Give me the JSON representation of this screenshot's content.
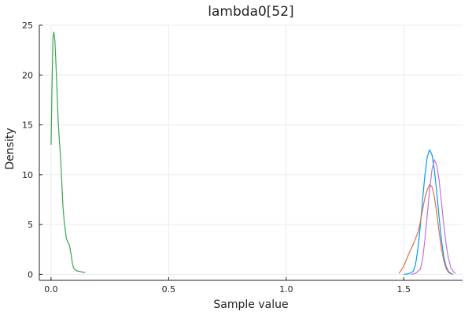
{
  "chart_data": {
    "type": "line",
    "title": "lambda0[52]",
    "xlabel": "Sample value",
    "ylabel": "Density",
    "xlim": [
      -0.05,
      1.75
    ],
    "ylim": [
      -0.6,
      25
    ],
    "x_ticks": [
      {
        "value": 0.0,
        "label": "0.0"
      },
      {
        "value": 0.5,
        "label": "0.5"
      },
      {
        "value": 1.0,
        "label": "1.0"
      },
      {
        "value": 1.5,
        "label": "1.5"
      }
    ],
    "y_ticks": [
      {
        "value": 0,
        "label": "0"
      },
      {
        "value": 5,
        "label": "5"
      },
      {
        "value": 10,
        "label": "10"
      },
      {
        "value": 15,
        "label": "15"
      },
      {
        "value": 20,
        "label": "20"
      },
      {
        "value": 25,
        "label": "25"
      }
    ],
    "grid": true,
    "legend": "none",
    "series": [
      {
        "color": "#009af9",
        "points": [
          [
            1.5,
            0.0
          ],
          [
            1.52,
            0.05
          ],
          [
            1.54,
            0.3
          ],
          [
            1.55,
            1.0
          ],
          [
            1.56,
            2.5
          ],
          [
            1.57,
            4.8
          ],
          [
            1.58,
            7.5
          ],
          [
            1.59,
            10.0
          ],
          [
            1.6,
            11.8
          ],
          [
            1.61,
            12.5
          ],
          [
            1.62,
            12.0
          ],
          [
            1.63,
            10.5
          ],
          [
            1.64,
            8.3
          ],
          [
            1.65,
            5.8
          ],
          [
            1.66,
            3.5
          ],
          [
            1.67,
            1.8
          ],
          [
            1.68,
            0.8
          ],
          [
            1.69,
            0.3
          ],
          [
            1.7,
            0.1
          ],
          [
            1.71,
            0.0
          ]
        ]
      },
      {
        "color": "#e26f46",
        "points": [
          [
            1.48,
            0.1
          ],
          [
            1.5,
            0.8
          ],
          [
            1.52,
            2.0
          ],
          [
            1.54,
            3.0
          ],
          [
            1.55,
            3.6
          ],
          [
            1.56,
            4.2
          ],
          [
            1.57,
            5.2
          ],
          [
            1.58,
            6.5
          ],
          [
            1.59,
            7.7
          ],
          [
            1.6,
            8.5
          ],
          [
            1.61,
            9.0
          ],
          [
            1.62,
            8.8
          ],
          [
            1.63,
            7.8
          ],
          [
            1.64,
            6.2
          ],
          [
            1.65,
            4.3
          ],
          [
            1.66,
            2.6
          ],
          [
            1.67,
            1.4
          ],
          [
            1.68,
            0.6
          ],
          [
            1.69,
            0.2
          ],
          [
            1.7,
            0.05
          ]
        ]
      },
      {
        "color": "#3da44d",
        "points": [
          [
            0.0,
            13.0
          ],
          [
            0.004,
            19.0
          ],
          [
            0.008,
            23.8
          ],
          [
            0.012,
            24.3
          ],
          [
            0.016,
            23.5
          ],
          [
            0.02,
            21.5
          ],
          [
            0.025,
            18.5
          ],
          [
            0.03,
            15.5
          ],
          [
            0.035,
            13.5
          ],
          [
            0.04,
            11.8
          ],
          [
            0.045,
            9.5
          ],
          [
            0.05,
            7.0
          ],
          [
            0.055,
            5.5
          ],
          [
            0.06,
            4.5
          ],
          [
            0.065,
            3.6
          ],
          [
            0.07,
            3.3
          ],
          [
            0.075,
            3.1
          ],
          [
            0.08,
            2.7
          ],
          [
            0.085,
            2.0
          ],
          [
            0.09,
            1.2
          ],
          [
            0.095,
            0.7
          ],
          [
            0.1,
            0.5
          ],
          [
            0.11,
            0.35
          ],
          [
            0.12,
            0.3
          ],
          [
            0.13,
            0.25
          ],
          [
            0.14,
            0.2
          ],
          [
            0.145,
            0.2
          ]
        ]
      },
      {
        "color": "#c271d2",
        "points": [
          [
            1.53,
            0.0
          ],
          [
            1.55,
            0.1
          ],
          [
            1.57,
            0.5
          ],
          [
            1.58,
            1.5
          ],
          [
            1.59,
            3.5
          ],
          [
            1.6,
            6.0
          ],
          [
            1.61,
            8.5
          ],
          [
            1.62,
            10.5
          ],
          [
            1.63,
            11.5
          ],
          [
            1.64,
            11.0
          ],
          [
            1.65,
            9.5
          ],
          [
            1.66,
            7.3
          ],
          [
            1.67,
            5.0
          ],
          [
            1.68,
            3.0
          ],
          [
            1.69,
            1.6
          ],
          [
            1.7,
            0.7
          ],
          [
            1.71,
            0.3
          ],
          [
            1.72,
            0.1
          ]
        ]
      }
    ]
  }
}
